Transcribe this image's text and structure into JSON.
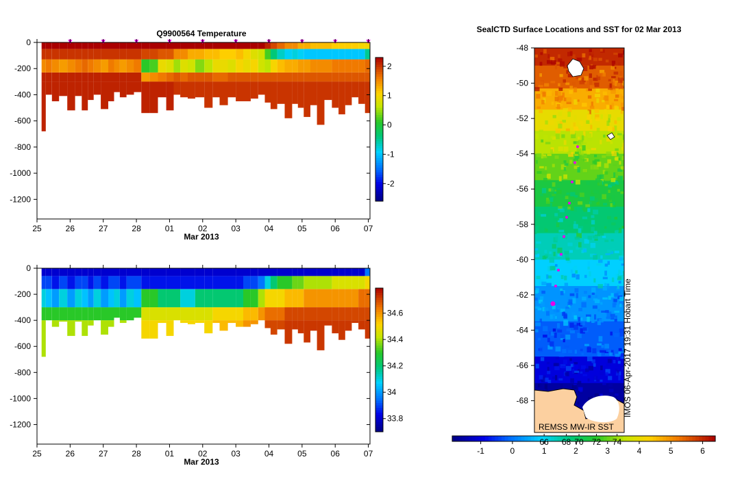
{
  "chart_data": [
    {
      "type": "heatmap",
      "id": "temperature",
      "title": "Q9900564  Temperature",
      "xlabel": "Mar 2013",
      "x_ticks": [
        "25",
        "26",
        "27",
        "28",
        "01",
        "02",
        "03",
        "04",
        "05",
        "06",
        "07"
      ],
      "xlim_days": [
        25,
        35.05
      ],
      "ylim": [
        -1350,
        0
      ],
      "y_ticks": [
        0,
        -200,
        -400,
        -600,
        -800,
        -1000,
        -1200
      ],
      "colorbar": {
        "min": -2.6,
        "max": 2.3,
        "ticks": [
          2,
          1,
          0,
          -1,
          -2
        ]
      },
      "marker_days": [
        26,
        27,
        28,
        29,
        30,
        31,
        32,
        33,
        34,
        35,
        35
      ],
      "profile_days": [
        25.18,
        25.35,
        25.55,
        25.78,
        26.05,
        26.25,
        26.45,
        26.62,
        26.8,
        27.05,
        27.25,
        27.4,
        27.6,
        27.8,
        28.05,
        28.25,
        28.55,
        28.75,
        29.05,
        29.2,
        29.45,
        29.65,
        29.9,
        30.2,
        30.4,
        30.62,
        30.9,
        31.1,
        31.35,
        31.55,
        31.8,
        31.95,
        32.15,
        32.35,
        32.6,
        32.8,
        32.95,
        33.15,
        33.35,
        33.55,
        33.8,
        34.0,
        34.2,
        34.4,
        34.6,
        34.8,
        35.0
      ],
      "profile_depths": [
        680,
        400,
        450,
        410,
        520,
        410,
        520,
        440,
        400,
        510,
        450,
        380,
        420,
        400,
        380,
        540,
        540,
        420,
        520,
        400,
        420,
        430,
        420,
        500,
        420,
        480,
        420,
        450,
        450,
        430,
        400,
        460,
        510,
        470,
        580,
        470,
        500,
        570,
        480,
        630,
        440,
        500,
        550,
        480,
        420,
        470,
        540
      ],
      "layers": [
        {
          "name": "surface",
          "top_m": 0,
          "values": [
            2.3,
            2.3,
            2.3,
            2.3,
            2.3,
            2.3,
            2.3,
            2.3,
            2.3,
            2.3,
            2.3,
            2.3,
            2.3,
            2.3,
            2.3,
            2.3,
            2.3,
            2.3,
            2.3,
            2.3,
            2.3,
            2.3,
            2.3,
            2.3,
            2.3,
            2.3,
            2.3,
            2.3,
            2.3,
            2.3,
            2.3,
            2.1,
            1.9,
            1.7,
            1.5,
            1.5,
            1.3,
            1.3,
            1.2,
            1.2,
            1.2,
            1.1,
            1.1,
            1.1,
            1.1,
            1.0,
            1.0
          ]
        },
        {
          "name": "near-surface",
          "top_m": 50,
          "values": [
            2.0,
            2.0,
            2.0,
            2.0,
            2.0,
            2.0,
            2.0,
            2.0,
            2.0,
            2.0,
            2.0,
            2.0,
            2.0,
            2.0,
            2.0,
            1.9,
            1.9,
            1.8,
            1.8,
            1.5,
            1.5,
            1.3,
            1.3,
            1.2,
            1.2,
            1.1,
            1.1,
            1.2,
            1.0,
            0.8,
            0.7,
            0.2,
            -0.4,
            -0.7,
            -0.9,
            -0.8,
            -0.9,
            -1.0,
            -1.0,
            -1.0,
            -1.0,
            -1.0,
            -1.0,
            -1.0,
            -1.0,
            -1.0,
            -0.5
          ]
        },
        {
          "name": "winter water",
          "top_m": 130,
          "values": [
            1.5,
            1.6,
            1.5,
            1.4,
            1.5,
            1.6,
            1.7,
            1.6,
            1.5,
            1.4,
            1.6,
            1.5,
            1.4,
            1.5,
            1.6,
            0.1,
            0.2,
            0.9,
            0.8,
            0.5,
            0.8,
            0.7,
            0.4,
            0.6,
            0.9,
            0.9,
            0.8,
            1.0,
            0.9,
            1.0,
            0.7,
            0.6,
            1.0,
            1.2,
            1.3,
            1.3,
            1.4,
            1.4,
            1.5,
            1.5,
            1.5,
            1.6,
            1.6,
            1.6,
            1.6,
            1.6,
            1.7
          ]
        },
        {
          "name": "upper deep",
          "top_m": 230,
          "values": [
            2.1,
            2.1,
            2.1,
            2.1,
            2.1,
            2.1,
            2.1,
            2.1,
            2.1,
            2.1,
            2.1,
            2.1,
            2.1,
            2.1,
            2.1,
            1.4,
            1.5,
            1.6,
            1.7,
            1.8,
            1.7,
            1.8,
            1.8,
            1.8,
            1.7,
            1.7,
            1.8,
            1.8,
            1.8,
            1.8,
            1.8,
            1.8,
            1.8,
            1.8,
            1.8,
            1.8,
            1.8,
            1.8,
            1.8,
            1.8,
            1.8,
            1.8,
            1.8,
            1.8,
            1.8,
            1.8,
            1.8
          ]
        },
        {
          "name": "deep",
          "top_m": 300,
          "values": [
            2.1,
            2.1,
            2.1,
            2.1,
            2.1,
            2.1,
            2.1,
            2.1,
            2.1,
            2.1,
            2.1,
            2.1,
            2.1,
            2.1,
            2.1,
            2.1,
            2.1,
            2.1,
            2.1,
            2.0,
            2.0,
            2.0,
            2.0,
            2.0,
            2.0,
            2.0,
            2.0,
            2.0,
            2.0,
            2.0,
            2.0,
            2.0,
            2.0,
            2.0,
            2.0,
            2.0,
            2.0,
            2.0,
            2.0,
            2.0,
            2.0,
            2.0,
            2.0,
            2.0,
            2.0,
            2.0,
            2.0
          ]
        }
      ]
    },
    {
      "type": "heatmap",
      "id": "salinity",
      "title": "",
      "xlabel": "Mar 2013",
      "x_ticks": [
        "25",
        "26",
        "27",
        "28",
        "01",
        "02",
        "03",
        "04",
        "05",
        "06",
        "07"
      ],
      "xlim_days": [
        25,
        35.05
      ],
      "ylim": [
        -1350,
        0
      ],
      "y_ticks": [
        0,
        -200,
        -400,
        -600,
        -800,
        -1000,
        -1200
      ],
      "colorbar": {
        "min": 33.7,
        "max": 34.79,
        "ticks": [
          34.6,
          34.4,
          34.2,
          34,
          33.8
        ]
      },
      "profile_days": [
        25.18,
        25.35,
        25.55,
        25.78,
        26.05,
        26.25,
        26.45,
        26.62,
        26.8,
        27.05,
        27.25,
        27.4,
        27.6,
        27.8,
        28.05,
        28.25,
        28.55,
        28.75,
        29.05,
        29.2,
        29.45,
        29.65,
        29.9,
        30.2,
        30.4,
        30.62,
        30.9,
        31.1,
        31.35,
        31.55,
        31.8,
        31.95,
        32.15,
        32.35,
        32.6,
        32.8,
        32.95,
        33.15,
        33.35,
        33.55,
        33.8,
        34.0,
        34.2,
        34.4,
        34.6,
        34.8,
        35.0
      ],
      "profile_depths": [
        680,
        400,
        450,
        410,
        520,
        410,
        520,
        440,
        400,
        510,
        450,
        380,
        420,
        400,
        380,
        540,
        540,
        420,
        520,
        400,
        420,
        430,
        420,
        500,
        420,
        480,
        420,
        450,
        450,
        430,
        400,
        460,
        510,
        470,
        580,
        470,
        500,
        570,
        480,
        630,
        440,
        500,
        550,
        480,
        420,
        470,
        540
      ],
      "layers": [
        {
          "name": "surface",
          "top_m": 0,
          "values": [
            33.8,
            33.8,
            33.8,
            33.8,
            33.8,
            33.8,
            33.8,
            33.8,
            33.8,
            33.8,
            33.8,
            33.8,
            33.8,
            33.8,
            33.8,
            33.8,
            33.8,
            33.8,
            33.8,
            33.8,
            33.8,
            33.8,
            33.8,
            33.8,
            33.8,
            33.8,
            33.8,
            33.8,
            33.8,
            33.8,
            33.8,
            33.8,
            33.8,
            33.8,
            33.8,
            33.8,
            33.8,
            33.8,
            33.8,
            33.8,
            33.8,
            33.8,
            33.8,
            33.8,
            33.8,
            33.8,
            33.95
          ]
        },
        {
          "name": "near-surface",
          "top_m": 60,
          "values": [
            33.9,
            33.9,
            33.85,
            33.9,
            33.85,
            33.9,
            33.9,
            33.85,
            33.9,
            33.85,
            33.9,
            33.9,
            33.85,
            33.9,
            33.9,
            33.85,
            33.85,
            33.85,
            33.85,
            33.85,
            33.85,
            33.85,
            33.85,
            33.85,
            33.85,
            33.85,
            33.85,
            33.85,
            33.9,
            33.9,
            33.95,
            34.1,
            34.2,
            34.3,
            34.3,
            34.35,
            34.35,
            34.4,
            34.4,
            34.4,
            34.4,
            34.45,
            34.45,
            34.45,
            34.45,
            34.45,
            34.5
          ]
        },
        {
          "name": "halocline",
          "top_m": 160,
          "values": [
            34.1,
            34.05,
            34.0,
            34.1,
            34.0,
            34.1,
            34.05,
            34.0,
            34.1,
            34.0,
            34.05,
            34.1,
            34.0,
            34.1,
            34.05,
            34.3,
            34.3,
            34.2,
            34.2,
            34.2,
            34.1,
            34.1,
            34.2,
            34.2,
            34.2,
            34.2,
            34.2,
            34.2,
            34.3,
            34.3,
            34.4,
            34.5,
            34.5,
            34.5,
            34.55,
            34.55,
            34.55,
            34.6,
            34.6,
            34.6,
            34.6,
            34.6,
            34.6,
            34.6,
            34.6,
            34.65,
            34.65
          ]
        },
        {
          "name": "intermediate",
          "top_m": 300,
          "values": [
            34.3,
            34.3,
            34.3,
            34.3,
            34.3,
            34.3,
            34.3,
            34.3,
            34.3,
            34.3,
            34.3,
            34.3,
            34.3,
            34.3,
            34.3,
            34.45,
            34.45,
            34.45,
            34.45,
            34.45,
            34.45,
            34.45,
            34.45,
            34.45,
            34.5,
            34.5,
            34.5,
            34.5,
            34.55,
            34.55,
            34.6,
            34.65,
            34.65,
            34.65,
            34.7,
            34.7,
            34.7,
            34.7,
            34.7,
            34.7,
            34.7,
            34.7,
            34.7,
            34.7,
            34.7,
            34.7,
            34.7
          ]
        },
        {
          "name": "deep",
          "top_m": 400,
          "values": [
            34.4,
            34.4,
            34.4,
            34.4,
            34.4,
            34.4,
            34.4,
            34.4,
            34.4,
            34.4,
            34.4,
            34.4,
            34.4,
            34.4,
            34.4,
            34.5,
            34.5,
            34.5,
            34.5,
            34.5,
            34.5,
            34.5,
            34.5,
            34.5,
            34.55,
            34.55,
            34.55,
            34.55,
            34.6,
            34.6,
            34.65,
            34.7,
            34.7,
            34.7,
            34.72,
            34.72,
            34.72,
            34.72,
            34.72,
            34.72,
            34.72,
            34.72,
            34.72,
            34.72,
            34.72,
            34.72,
            34.72
          ]
        }
      ]
    },
    {
      "type": "heatmap",
      "id": "sst-map",
      "title": "SealCTD Surface Locations and SST for 02 Mar 2013",
      "y_ticks": [
        -48,
        -50,
        -52,
        -54,
        -56,
        -58,
        -60,
        -62,
        -64,
        -66,
        -68
      ],
      "ylim": [
        -48,
        -69.8
      ],
      "colorbar": {
        "min": -1.9,
        "max": 6.4,
        "ticks": [
          -1,
          0,
          1,
          2,
          3,
          4,
          5,
          6
        ],
        "secondary_ticks": [
          "66",
          "68",
          "70",
          "72",
          "74"
        ],
        "secondary_tick_celsius": [
          1.0,
          1.7,
          2.1,
          2.65,
          3.3
        ]
      },
      "sst_bands": [
        {
          "lat_top": -48,
          "value": 6.0
        },
        {
          "lat_top": -49,
          "value": 5.5
        },
        {
          "lat_top": -50.3,
          "value": 4.7
        },
        {
          "lat_top": -51.5,
          "value": 4.0
        },
        {
          "lat_top": -52.7,
          "value": 3.5
        },
        {
          "lat_top": -54,
          "value": 3.0
        },
        {
          "lat_top": -55.5,
          "value": 2.4
        },
        {
          "lat_top": -57,
          "value": 1.9
        },
        {
          "lat_top": -58.5,
          "value": 1.4
        },
        {
          "lat_top": -60,
          "value": 0.9
        },
        {
          "lat_top": -61.5,
          "value": 0.3
        },
        {
          "lat_top": -63.5,
          "value": -0.2
        },
        {
          "lat_top": -65.5,
          "value": -1.0
        },
        {
          "lat_top": -67,
          "value": -1.6
        }
      ],
      "float_track": [
        {
          "lat": -53.6
        },
        {
          "lat": -54.5
        },
        {
          "lat": -55.6
        },
        {
          "lat": -56.8
        },
        {
          "lat": -57.6
        },
        {
          "lat": -58.7
        },
        {
          "lat": -59.7
        },
        {
          "lat": -60.6
        },
        {
          "lat": -61.5
        },
        {
          "lat": -62.5
        }
      ],
      "source_label": "REMSS MW-IR SST",
      "credit_label": "IMOS 06-Apr-2017 19:31 Hobart Time",
      "land_color": "#fcd0a0"
    }
  ]
}
